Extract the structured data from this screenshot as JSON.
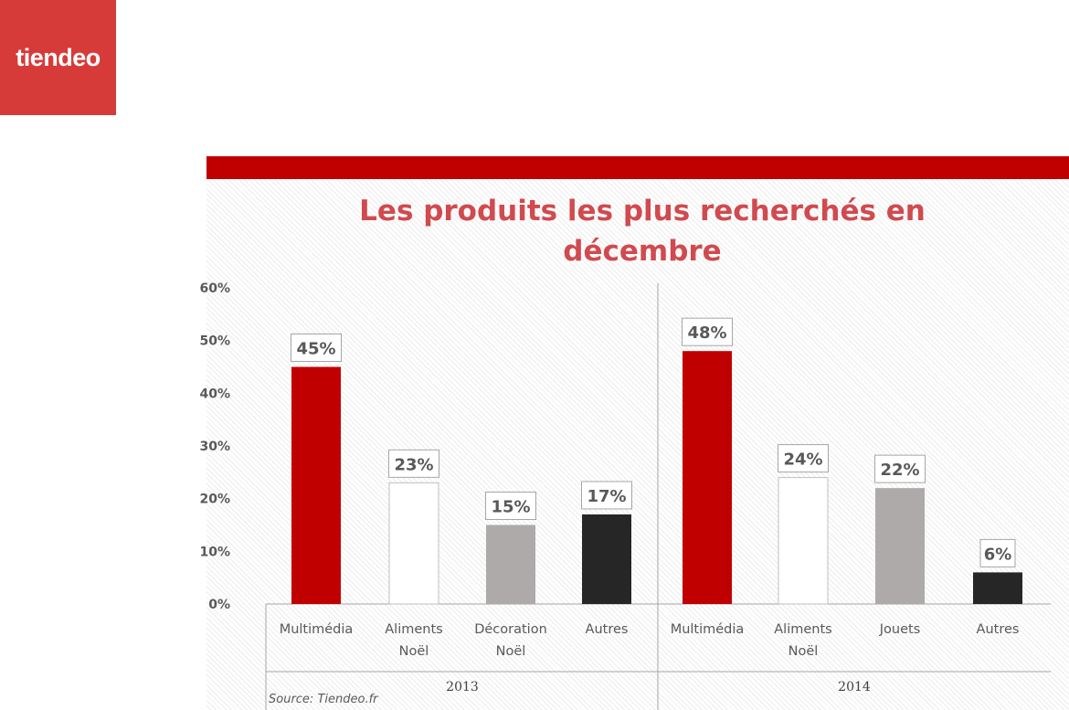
{
  "logo": {
    "text": "tiendeo"
  },
  "colors": {
    "multimedia": "#c00000",
    "aliments": "#ffffff",
    "third": "#aeaaaa",
    "autres": "#262626",
    "title": "#d04a4f",
    "topbar": "#c00000"
  },
  "chart_data": {
    "type": "bar",
    "title_lines": [
      "Les produits les plus recherchés en",
      "décembre"
    ],
    "ylim": [
      0,
      60
    ],
    "yticks": [
      0,
      10,
      20,
      30,
      40,
      50,
      60
    ],
    "ytick_labels": [
      "0%",
      "10%",
      "20%",
      "30%",
      "40%",
      "50%",
      "60%"
    ],
    "unit": "%",
    "grid": false,
    "groups": [
      {
        "name": "2013",
        "categories": [
          {
            "label": [
              "Multimédia"
            ],
            "value": 45,
            "color": "#c00000"
          },
          {
            "label": [
              "Aliments",
              "Noël"
            ],
            "value": 23,
            "color": "#ffffff"
          },
          {
            "label": [
              "Décoration",
              "Noël"
            ],
            "value": 15,
            "color": "#aeaaaa"
          },
          {
            "label": [
              "Autres"
            ],
            "value": 17,
            "color": "#262626"
          }
        ]
      },
      {
        "name": "2014",
        "categories": [
          {
            "label": [
              "Multimédia"
            ],
            "value": 48,
            "color": "#c00000"
          },
          {
            "label": [
              "Aliments",
              "Noël"
            ],
            "value": 24,
            "color": "#ffffff"
          },
          {
            "label": [
              "Jouets"
            ],
            "value": 22,
            "color": "#aeaaaa"
          },
          {
            "label": [
              "Autres"
            ],
            "value": 6,
            "color": "#262626"
          }
        ]
      }
    ],
    "source": "Source: Tiendeo.fr"
  }
}
